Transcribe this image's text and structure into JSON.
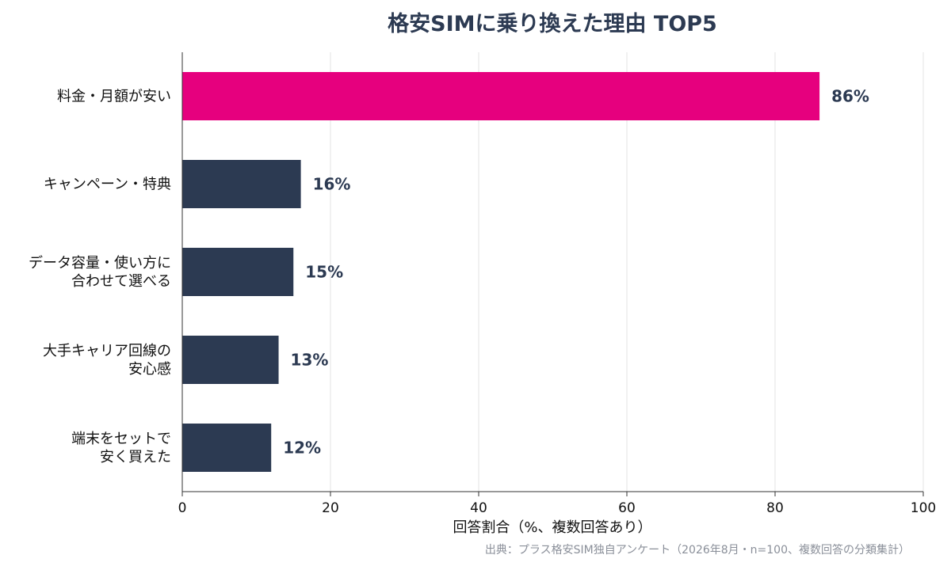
{
  "chart_data": {
    "type": "bar",
    "orientation": "horizontal",
    "title": "格安SIMに乗り換えた理由 TOP5",
    "xlabel": "回答割合（%、複数回答あり）",
    "ylabel": "",
    "xlim": [
      0,
      100
    ],
    "xticks": [
      0,
      20,
      40,
      60,
      80,
      100
    ],
    "grid": true,
    "categories": [
      [
        "料金・月額が安い"
      ],
      [
        "キャンペーン・特典"
      ],
      [
        "データ容量・使い方に",
        "合わせて選べる"
      ],
      [
        "大手キャリア回線の",
        "安心感"
      ],
      [
        "端末をセットで",
        "安く買えた"
      ]
    ],
    "values": [
      86,
      16,
      15,
      13,
      12
    ],
    "data_labels": [
      "86%",
      "16%",
      "15%",
      "13%",
      "12%"
    ],
    "highlight_index": 0,
    "source": "出典：プラス格安SIM独自アンケート（2026年8月・n=100、複数回答の分類集計）"
  },
  "colors": {
    "highlight": "#e6007e",
    "bar": "#2c3a52",
    "title": "#2c3a52",
    "data_label": "#2c3a52",
    "grid": "#e3e3e3",
    "axis": "#333333"
  }
}
